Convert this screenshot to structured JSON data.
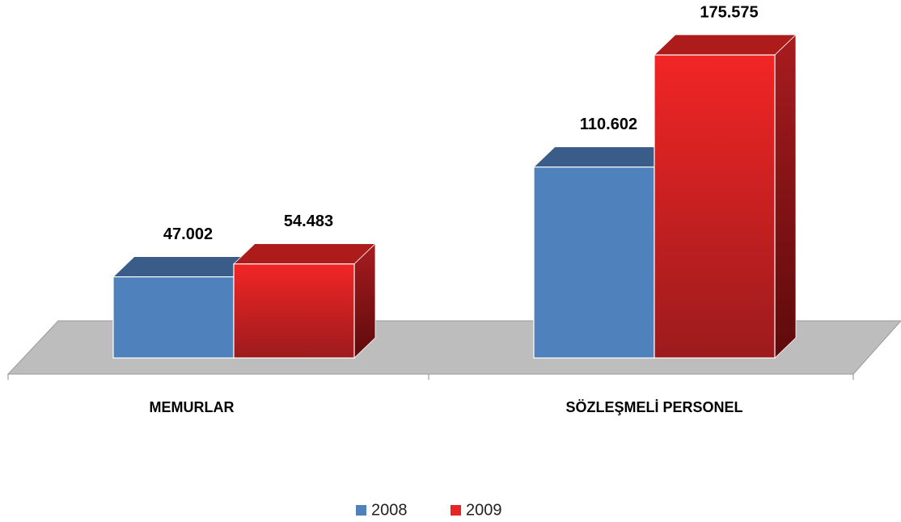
{
  "chart_data": {
    "type": "bar3d",
    "categories": [
      "MEMURLAR",
      "SÖZLEŞMELİ PERSONEL"
    ],
    "series": [
      {
        "name": "2008",
        "color": "#4f81bd",
        "values": [
          47002,
          110602
        ],
        "value_labels": [
          "47.002",
          "110.602"
        ]
      },
      {
        "name": "2009",
        "color": "#e82424",
        "values": [
          54483,
          175575
        ],
        "value_labels": [
          "54.483",
          "175.575"
        ]
      }
    ],
    "legend": "bottom"
  }
}
